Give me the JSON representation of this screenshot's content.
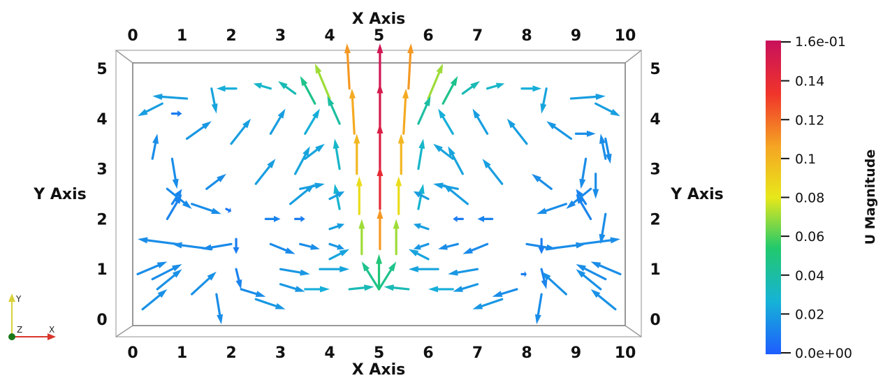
{
  "chart_data": {
    "type": "vector_field",
    "x_axis_title": "X Axis",
    "y_axis_title": "Y Axis",
    "x_ticks": [
      "0",
      "1",
      "2",
      "3",
      "4",
      "5",
      "6",
      "7",
      "8",
      "9",
      "10"
    ],
    "y_ticks": [
      "0",
      "1",
      "2",
      "3",
      "4",
      "5"
    ],
    "xlim": [
      0,
      10
    ],
    "ylim": [
      0,
      5
    ],
    "colorbar": {
      "title": "U Magnitude",
      "min_label": "0.0e+00",
      "max_label": "1.6e-01",
      "ticks": [
        "0.14",
        "0.12",
        "0.1",
        "0.08",
        "0.06",
        "0.04",
        "0.02"
      ],
      "tick_values": [
        0.14,
        0.12,
        0.1,
        0.08,
        0.06,
        0.04,
        0.02
      ],
      "range": [
        0,
        0.16
      ],
      "colormap": [
        "#1e5dff",
        "#16b3d6",
        "#22c96b",
        "#e8e81a",
        "#f5a623",
        "#f0342a",
        "#c8105c"
      ]
    },
    "orientation_triad": {
      "y": "Y",
      "z": "Z",
      "x": "X"
    },
    "vectors": [
      {
        "x": 5.02,
        "y": 4.6,
        "dx": 0,
        "dy": 0.9,
        "m": 0.155
      },
      {
        "x": 5.02,
        "y": 3.8,
        "dx": 0,
        "dy": 0.9,
        "m": 0.152
      },
      {
        "x": 5.02,
        "y": 3.0,
        "dx": 0,
        "dy": 0.9,
        "m": 0.148
      },
      {
        "x": 5.02,
        "y": 2.2,
        "dx": 0,
        "dy": 0.85,
        "m": 0.14
      },
      {
        "x": 5.02,
        "y": 1.4,
        "dx": 0,
        "dy": 0.8,
        "m": 0.11
      },
      {
        "x": 4.4,
        "y": 4.6,
        "dx": -0.05,
        "dy": 0.9,
        "m": 0.11
      },
      {
        "x": 4.5,
        "y": 3.7,
        "dx": -0.05,
        "dy": 0.9,
        "m": 0.105
      },
      {
        "x": 4.55,
        "y": 2.9,
        "dx": 0,
        "dy": 0.8,
        "m": 0.1
      },
      {
        "x": 4.6,
        "y": 2.1,
        "dx": 0,
        "dy": 0.75,
        "m": 0.085
      },
      {
        "x": 4.65,
        "y": 1.3,
        "dx": 0,
        "dy": 0.7,
        "m": 0.07
      },
      {
        "x": 5.6,
        "y": 4.6,
        "dx": 0.05,
        "dy": 0.9,
        "m": 0.11
      },
      {
        "x": 5.5,
        "y": 3.7,
        "dx": 0.05,
        "dy": 0.9,
        "m": 0.105
      },
      {
        "x": 5.45,
        "y": 2.9,
        "dx": 0,
        "dy": 0.8,
        "m": 0.1
      },
      {
        "x": 5.4,
        "y": 2.1,
        "dx": 0,
        "dy": 0.75,
        "m": 0.085
      },
      {
        "x": 5.35,
        "y": 1.3,
        "dx": 0,
        "dy": 0.7,
        "m": 0.07
      },
      {
        "x": 4.0,
        "y": 4.4,
        "dx": -0.3,
        "dy": 0.7,
        "m": 0.07
      },
      {
        "x": 6.0,
        "y": 4.4,
        "dx": 0.3,
        "dy": 0.7,
        "m": 0.07
      },
      {
        "x": 3.7,
        "y": 4.3,
        "dx": -0.3,
        "dy": 0.55,
        "m": 0.045
      },
      {
        "x": 6.3,
        "y": 4.3,
        "dx": 0.3,
        "dy": 0.55,
        "m": 0.045
      },
      {
        "x": 5.0,
        "y": 0.6,
        "dx": -0.35,
        "dy": 0.55,
        "m": 0.045
      },
      {
        "x": 5.0,
        "y": 0.6,
        "dx": 0.35,
        "dy": 0.55,
        "m": 0.045
      },
      {
        "x": 5.0,
        "y": 0.6,
        "dx": 0,
        "dy": 0.7,
        "m": 0.05
      },
      {
        "x": 4.4,
        "y": 0.6,
        "dx": 0.5,
        "dy": 0.05,
        "m": 0.035
      },
      {
        "x": 5.6,
        "y": 0.6,
        "dx": -0.5,
        "dy": 0.05,
        "m": 0.035
      },
      {
        "x": 3.3,
        "y": 4.5,
        "dx": -0.35,
        "dy": 0.25,
        "m": 0.035
      },
      {
        "x": 6.7,
        "y": 4.5,
        "dx": 0.35,
        "dy": 0.25,
        "m": 0.035
      },
      {
        "x": 2.8,
        "y": 4.6,
        "dx": -0.35,
        "dy": 0.1,
        "m": 0.03
      },
      {
        "x": 7.2,
        "y": 4.6,
        "dx": 0.35,
        "dy": 0.1,
        "m": 0.03
      },
      {
        "x": 2.1,
        "y": 4.6,
        "dx": -0.4,
        "dy": 0,
        "m": 0.025
      },
      {
        "x": 7.9,
        "y": 4.6,
        "dx": 0.4,
        "dy": 0,
        "m": 0.025
      },
      {
        "x": 1.1,
        "y": 4.4,
        "dx": -0.7,
        "dy": 0.05,
        "m": 0.02
      },
      {
        "x": 8.9,
        "y": 4.4,
        "dx": 0.7,
        "dy": 0.05,
        "m": 0.02
      },
      {
        "x": 0.6,
        "y": 4.3,
        "dx": -0.5,
        "dy": -0.25,
        "m": 0.02
      },
      {
        "x": 9.4,
        "y": 4.3,
        "dx": 0.5,
        "dy": -0.25,
        "m": 0.02
      },
      {
        "x": 1.6,
        "y": 4.6,
        "dx": 0.1,
        "dy": -0.5,
        "m": 0.022
      },
      {
        "x": 8.4,
        "y": 4.6,
        "dx": -0.1,
        "dy": -0.5,
        "m": 0.022
      },
      {
        "x": 4.2,
        "y": 3.9,
        "dx": -0.25,
        "dy": 0.55,
        "m": 0.04
      },
      {
        "x": 5.8,
        "y": 3.9,
        "dx": 0.25,
        "dy": 0.55,
        "m": 0.04
      },
      {
        "x": 3.5,
        "y": 3.7,
        "dx": 0.3,
        "dy": 0.5,
        "m": 0.025
      },
      {
        "x": 6.5,
        "y": 3.7,
        "dx": -0.3,
        "dy": 0.5,
        "m": 0.025
      },
      {
        "x": 2.8,
        "y": 3.7,
        "dx": 0.3,
        "dy": 0.5,
        "m": 0.02
      },
      {
        "x": 7.2,
        "y": 3.7,
        "dx": -0.3,
        "dy": 0.5,
        "m": 0.02
      },
      {
        "x": 2.0,
        "y": 3.5,
        "dx": 0.4,
        "dy": 0.5,
        "m": 0.02
      },
      {
        "x": 8.0,
        "y": 3.5,
        "dx": -0.4,
        "dy": 0.5,
        "m": 0.02
      },
      {
        "x": 1.1,
        "y": 3.6,
        "dx": 0.5,
        "dy": 0.35,
        "m": 0.018
      },
      {
        "x": 8.9,
        "y": 3.6,
        "dx": -0.5,
        "dy": 0.35,
        "m": 0.018
      },
      {
        "x": 0.4,
        "y": 3.2,
        "dx": 0.1,
        "dy": 0.5,
        "m": 0.015
      },
      {
        "x": 9.6,
        "y": 3.2,
        "dx": -0.1,
        "dy": 0.5,
        "m": 0.015
      },
      {
        "x": 0.8,
        "y": 3.2,
        "dx": 0.1,
        "dy": -0.6,
        "m": 0.015
      },
      {
        "x": 9.2,
        "y": 3.2,
        "dx": -0.1,
        "dy": -0.6,
        "m": 0.015
      },
      {
        "x": 0.8,
        "y": 4.1,
        "dx": 0.2,
        "dy": 0,
        "m": 0.01
      },
      {
        "x": 3.3,
        "y": 2.9,
        "dx": 0.3,
        "dy": 0.55,
        "m": 0.022
      },
      {
        "x": 6.7,
        "y": 2.9,
        "dx": -0.3,
        "dy": 0.55,
        "m": 0.022
      },
      {
        "x": 4.2,
        "y": 3.0,
        "dx": -0.1,
        "dy": 0.6,
        "m": 0.03
      },
      {
        "x": 5.8,
        "y": 3.0,
        "dx": 0.1,
        "dy": 0.6,
        "m": 0.03
      },
      {
        "x": 2.5,
        "y": 2.7,
        "dx": 0.4,
        "dy": 0.5,
        "m": 0.02
      },
      {
        "x": 7.5,
        "y": 2.7,
        "dx": -0.4,
        "dy": 0.5,
        "m": 0.02
      },
      {
        "x": 1.5,
        "y": 2.6,
        "dx": 0.4,
        "dy": 0.3,
        "m": 0.015
      },
      {
        "x": 8.5,
        "y": 2.6,
        "dx": -0.4,
        "dy": 0.3,
        "m": 0.015
      },
      {
        "x": 3.5,
        "y": 3.2,
        "dx": 0.4,
        "dy": 0.3,
        "m": 0.022
      },
      {
        "x": 6.5,
        "y": 3.2,
        "dx": -0.4,
        "dy": 0.3,
        "m": 0.022
      },
      {
        "x": 3.2,
        "y": 2.3,
        "dx": 0.5,
        "dy": 0.4,
        "m": 0.02
      },
      {
        "x": 6.8,
        "y": 2.3,
        "dx": -0.5,
        "dy": 0.4,
        "m": 0.02
      },
      {
        "x": 4.2,
        "y": 2.2,
        "dx": -0.1,
        "dy": 0.5,
        "m": 0.028
      },
      {
        "x": 5.8,
        "y": 2.2,
        "dx": 0.1,
        "dy": 0.5,
        "m": 0.028
      },
      {
        "x": 4.0,
        "y": 2.4,
        "dx": 0.3,
        "dy": 0.15,
        "m": 0.02
      },
      {
        "x": 6.0,
        "y": 2.4,
        "dx": -0.3,
        "dy": 0.15,
        "m": 0.02
      },
      {
        "x": 3.4,
        "y": 2.6,
        "dx": 0.5,
        "dy": 0.1,
        "m": 0.02
      },
      {
        "x": 6.6,
        "y": 2.6,
        "dx": -0.5,
        "dy": 0.1,
        "m": 0.02
      },
      {
        "x": 0.8,
        "y": 2.3,
        "dx": 0.2,
        "dy": 0.3,
        "m": 0.012
      },
      {
        "x": 9.2,
        "y": 2.3,
        "dx": -0.2,
        "dy": 0.3,
        "m": 0.012
      },
      {
        "x": 0.7,
        "y": 2.6,
        "dx": 0.5,
        "dy": -0.4,
        "m": 0.014
      },
      {
        "x": 9.3,
        "y": 2.6,
        "dx": -0.5,
        "dy": -0.4,
        "m": 0.014
      },
      {
        "x": 1.2,
        "y": 2.3,
        "dx": 0.6,
        "dy": -0.2,
        "m": 0.015
      },
      {
        "x": 8.8,
        "y": 2.3,
        "dx": -0.6,
        "dy": -0.2,
        "m": 0.015
      },
      {
        "x": 0.7,
        "y": 2.0,
        "dx": 0.3,
        "dy": 0.5,
        "m": 0.012
      },
      {
        "x": 9.3,
        "y": 2.0,
        "dx": -0.3,
        "dy": 0.5,
        "m": 0.012
      },
      {
        "x": 1.9,
        "y": 2.2,
        "dx": 0.1,
        "dy": -0.05,
        "m": 0.008
      },
      {
        "x": 2.7,
        "y": 2.0,
        "dx": 0.3,
        "dy": 0,
        "m": 0.012
      },
      {
        "x": 7.3,
        "y": 2.0,
        "dx": -0.3,
        "dy": 0,
        "m": 0.012
      },
      {
        "x": 3.3,
        "y": 2.0,
        "dx": 0.2,
        "dy": 0,
        "m": 0.01
      },
      {
        "x": 6.7,
        "y": 2.0,
        "dx": -0.2,
        "dy": 0,
        "m": 0.01
      },
      {
        "x": 4.0,
        "y": 1.8,
        "dx": 0.3,
        "dy": 0.1,
        "m": 0.02
      },
      {
        "x": 6.0,
        "y": 1.8,
        "dx": -0.3,
        "dy": 0.1,
        "m": 0.02
      },
      {
        "x": 0.9,
        "y": 1.5,
        "dx": -0.8,
        "dy": 0.1,
        "m": 0.015
      },
      {
        "x": 9.1,
        "y": 1.5,
        "dx": 0.8,
        "dy": 0.1,
        "m": 0.015
      },
      {
        "x": 1.6,
        "y": 1.4,
        "dx": -0.8,
        "dy": 0.1,
        "m": 0.015
      },
      {
        "x": 8.4,
        "y": 1.4,
        "dx": 0.8,
        "dy": 0.1,
        "m": 0.015
      },
      {
        "x": 2.0,
        "y": 1.5,
        "dx": -0.6,
        "dy": -0.1,
        "m": 0.014
      },
      {
        "x": 8.0,
        "y": 1.5,
        "dx": 0.6,
        "dy": -0.1,
        "m": 0.014
      },
      {
        "x": 3.4,
        "y": 1.5,
        "dx": 0.4,
        "dy": -0.1,
        "m": 0.015
      },
      {
        "x": 6.6,
        "y": 1.5,
        "dx": -0.4,
        "dy": -0.1,
        "m": 0.015
      },
      {
        "x": 4.0,
        "y": 1.5,
        "dx": 0.3,
        "dy": -0.1,
        "m": 0.018
      },
      {
        "x": 6.0,
        "y": 1.5,
        "dx": -0.3,
        "dy": -0.1,
        "m": 0.018
      },
      {
        "x": 2.8,
        "y": 1.5,
        "dx": 0.5,
        "dy": -0.2,
        "m": 0.014
      },
      {
        "x": 7.2,
        "y": 1.5,
        "dx": -0.5,
        "dy": -0.2,
        "m": 0.014
      },
      {
        "x": 2.1,
        "y": 1.6,
        "dx": 0,
        "dy": -0.3,
        "m": 0.01
      },
      {
        "x": 8.3,
        "y": 1.6,
        "dx": 0,
        "dy": -0.3,
        "m": 0.01
      },
      {
        "x": 0.1,
        "y": 0.9,
        "dx": 0.6,
        "dy": 0.25,
        "m": 0.015
      },
      {
        "x": 9.9,
        "y": 0.9,
        "dx": -0.6,
        "dy": 0.25,
        "m": 0.015
      },
      {
        "x": 0.4,
        "y": 0.8,
        "dx": 0.6,
        "dy": 0.3,
        "m": 0.015
      },
      {
        "x": 9.6,
        "y": 0.8,
        "dx": -0.6,
        "dy": 0.3,
        "m": 0.015
      },
      {
        "x": 0.2,
        "y": 0.2,
        "dx": 0.5,
        "dy": 0.4,
        "m": 0.016
      },
      {
        "x": 9.8,
        "y": 0.2,
        "dx": -0.5,
        "dy": 0.4,
        "m": 0.016
      },
      {
        "x": 0.5,
        "y": 0.6,
        "dx": 0.5,
        "dy": 0.4,
        "m": 0.016
      },
      {
        "x": 9.5,
        "y": 0.6,
        "dx": -0.5,
        "dy": 0.4,
        "m": 0.016
      },
      {
        "x": 1.2,
        "y": 0.5,
        "dx": 0.5,
        "dy": 0.45,
        "m": 0.016
      },
      {
        "x": 8.8,
        "y": 0.5,
        "dx": -0.5,
        "dy": 0.45,
        "m": 0.016
      },
      {
        "x": 1.7,
        "y": 0.5,
        "dx": 0.1,
        "dy": -0.6,
        "m": 0.015
      },
      {
        "x": 8.3,
        "y": 0.5,
        "dx": -0.1,
        "dy": -0.6,
        "m": 0.015
      },
      {
        "x": 2.1,
        "y": 1.0,
        "dx": 0.1,
        "dy": -0.4,
        "m": 0.012
      },
      {
        "x": 8.3,
        "y": 1.0,
        "dx": 0.1,
        "dy": -0.4,
        "m": 0.012
      },
      {
        "x": 2.2,
        "y": 0.6,
        "dx": 0.5,
        "dy": -0.15,
        "m": 0.015
      },
      {
        "x": 7.8,
        "y": 0.6,
        "dx": -0.5,
        "dy": -0.15,
        "m": 0.015
      },
      {
        "x": 2.5,
        "y": 0.4,
        "dx": 0.6,
        "dy": -0.2,
        "m": 0.018
      },
      {
        "x": 7.5,
        "y": 0.4,
        "dx": -0.6,
        "dy": -0.2,
        "m": 0.018
      },
      {
        "x": 3.0,
        "y": 0.7,
        "dx": 0.5,
        "dy": -0.15,
        "m": 0.018
      },
      {
        "x": 7.0,
        "y": 0.7,
        "dx": -0.5,
        "dy": -0.15,
        "m": 0.018
      },
      {
        "x": 3.0,
        "y": 1.0,
        "dx": 0.6,
        "dy": -0.1,
        "m": 0.018
      },
      {
        "x": 7.0,
        "y": 1.0,
        "dx": -0.6,
        "dy": -0.1,
        "m": 0.018
      },
      {
        "x": 3.5,
        "y": 0.6,
        "dx": 0.5,
        "dy": 0,
        "m": 0.025
      },
      {
        "x": 6.5,
        "y": 0.6,
        "dx": -0.5,
        "dy": 0,
        "m": 0.025
      },
      {
        "x": 3.8,
        "y": 1.0,
        "dx": 0.6,
        "dy": 0,
        "m": 0.022
      },
      {
        "x": 6.2,
        "y": 1.0,
        "dx": -0.6,
        "dy": 0,
        "m": 0.022
      },
      {
        "x": 4.0,
        "y": 1.2,
        "dx": 0.4,
        "dy": 0.2,
        "m": 0.022
      },
      {
        "x": 6.0,
        "y": 1.2,
        "dx": -0.4,
        "dy": 0.2,
        "m": 0.022
      },
      {
        "x": 7.9,
        "y": 0.9,
        "dx": 0.1,
        "dy": 0,
        "m": 0.01
      },
      {
        "x": 9.0,
        "y": 3.7,
        "dx": 0.4,
        "dy": 0,
        "m": 0.015
      },
      {
        "x": 9.6,
        "y": 3.6,
        "dx": 0.1,
        "dy": -0.5,
        "m": 0.015
      },
      {
        "x": 9.4,
        "y": 2.9,
        "dx": 0,
        "dy": -0.5,
        "m": 0.015
      },
      {
        "x": 9.6,
        "y": 2.1,
        "dx": -0.1,
        "dy": -0.6,
        "m": 0.015
      }
    ]
  }
}
